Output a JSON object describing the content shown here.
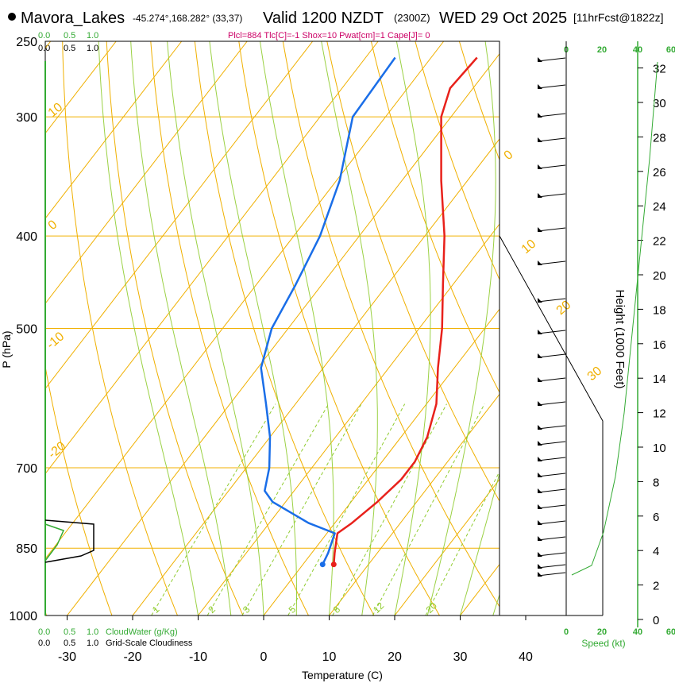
{
  "header": {
    "station": "Mavora_Lakes",
    "coords": "-45.274°,168.282° (33,37)",
    "valid": "Valid 1200 NZDT",
    "utc": "(2300Z)",
    "date": "WED 29 Oct 2025",
    "forecast": "[11hrFcst@1822z]",
    "params": "Plcl=884 Tlc[C]=-1 Shox=10 Pwat[cm]=1 Cape[J]= 0"
  },
  "labels": {
    "cw_scale_top": [
      "0.0",
      "0.5",
      "1.0"
    ],
    "cloud_scale_top": [
      "0.0",
      "0.5",
      "1.0"
    ],
    "cw_scale_bottom": [
      "0.0",
      "0.5",
      "1.0"
    ],
    "cloud_scale_bottom": [
      "0.0",
      "0.5",
      "1.0"
    ],
    "cloudwater_title": "CloudWater (g/Kg)",
    "cloudiness_title": "Grid-Scale Cloudiness",
    "speed_title": "Speed (kt)",
    "speed_ticks": [
      "0",
      "20",
      "40",
      "60"
    ],
    "height_title": "Height (1000 Feet)"
  },
  "colors": {
    "temperature": "#e8211b",
    "dewpoint": "#1a6ee8",
    "isotherm": "#f0b000",
    "dry_adiabat": "#f0b000",
    "moist_adiabat": "#90cc30",
    "mixing_ratio": "#90cc30",
    "wind_speed": "#33aa33",
    "cloudwater": "#33aa33",
    "params": "#cc0066"
  },
  "chart_data": {
    "type": "skew-t",
    "xlabel": "Temperature (C)",
    "ylabel": "P (hPa)",
    "x_ticks": [
      -30,
      -20,
      -10,
      0,
      10,
      20,
      30,
      40
    ],
    "y_ticks": [
      250,
      300,
      400,
      500,
      700,
      850,
      1000
    ],
    "ylim": [
      1000,
      250
    ],
    "y_scale": "log",
    "temperature_profile": [
      {
        "p": 884,
        "t": 4.7
      },
      {
        "p": 860,
        "t": 3.5
      },
      {
        "p": 820,
        "t": 1.6
      },
      {
        "p": 800,
        "t": 2.6
      },
      {
        "p": 760,
        "t": 4.0
      },
      {
        "p": 720,
        "t": 5.0
      },
      {
        "p": 690,
        "t": 5.0
      },
      {
        "p": 650,
        "t": 4.0
      },
      {
        "p": 600,
        "t": 1.5
      },
      {
        "p": 550,
        "t": -2.5
      },
      {
        "p": 500,
        "t": -6.5
      },
      {
        "p": 450,
        "t": -11.5
      },
      {
        "p": 400,
        "t": -17.0
      },
      {
        "p": 350,
        "t": -24.0
      },
      {
        "p": 300,
        "t": -31.5
      },
      {
        "p": 280,
        "t": -33.5
      },
      {
        "p": 260,
        "t": -33.0
      }
    ],
    "dewpoint_profile": [
      {
        "p": 884,
        "t": 3.0
      },
      {
        "p": 860,
        "t": 2.5
      },
      {
        "p": 820,
        "t": 1.2
      },
      {
        "p": 800,
        "t": -4.0
      },
      {
        "p": 760,
        "t": -12.0
      },
      {
        "p": 740,
        "t": -14.5
      },
      {
        "p": 700,
        "t": -16.5
      },
      {
        "p": 650,
        "t": -20.0
      },
      {
        "p": 600,
        "t": -24.5
      },
      {
        "p": 550,
        "t": -29.5
      },
      {
        "p": 500,
        "t": -32.5
      },
      {
        "p": 450,
        "t": -34.0
      },
      {
        "p": 400,
        "t": -36.0
      },
      {
        "p": 350,
        "t": -39.5
      },
      {
        "p": 300,
        "t": -45.0
      },
      {
        "p": 260,
        "t": -45.5
      }
    ],
    "isotherm_labels": [
      -10,
      0,
      10,
      20,
      30
    ],
    "mixing_ratio_labels": [
      "1",
      "2",
      "3",
      "5",
      "8",
      "12",
      "20"
    ],
    "height_ticks_kft": [
      0,
      2,
      4,
      6,
      8,
      10,
      12,
      14,
      16,
      18,
      20,
      22,
      24,
      26,
      28,
      30,
      32
    ],
    "speed_ticks_kt": [
      0,
      20,
      40,
      60
    ]
  }
}
